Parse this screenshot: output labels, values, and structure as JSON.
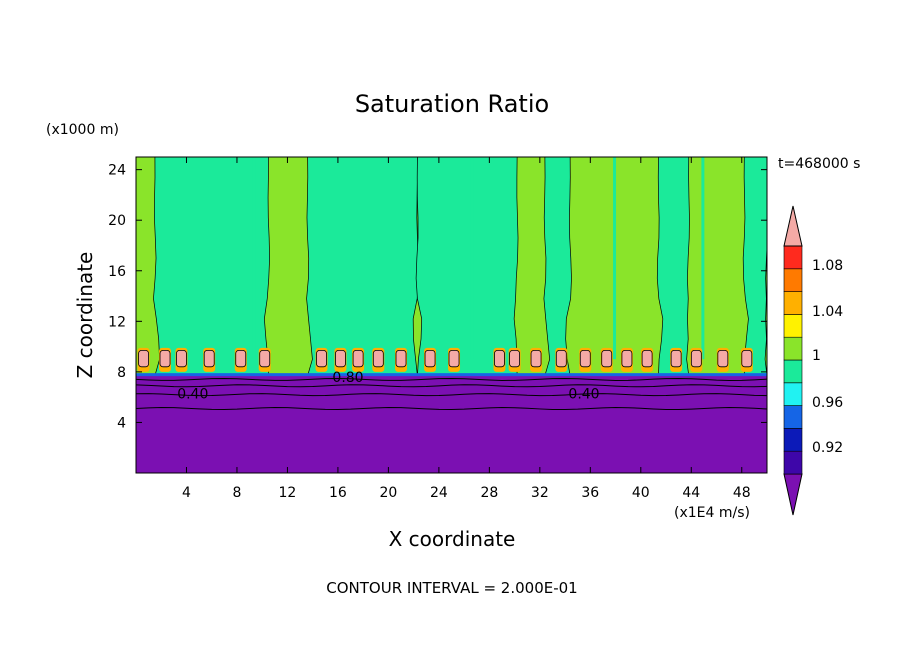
{
  "chart_data": {
    "type": "heatmap",
    "title": "Saturation Ratio",
    "xlabel": "X coordinate",
    "ylabel": "Z coordinate",
    "x_unit": "(x1E4 m/s)",
    "y_unit": "(x1000 m)",
    "time_label": "t=468000 s",
    "footer": "CONTOUR INTERVAL = 2.000E-01",
    "xlim": [
      0,
      50
    ],
    "ylim": [
      0,
      25
    ],
    "x_ticks": [
      4,
      8,
      12,
      16,
      20,
      24,
      28,
      32,
      36,
      40,
      44,
      48
    ],
    "y_ticks": [
      4,
      8,
      12,
      16,
      20,
      24
    ],
    "contour_labels": [
      {
        "text": "0.40",
        "x": 4.5,
        "y": 6.3
      },
      {
        "text": "0.40",
        "x": 35.5,
        "y": 6.3
      },
      {
        "text": "0.80",
        "x": 16.8,
        "y": 7.6
      }
    ],
    "colorbar": {
      "colors": [
        "#7b10b2",
        "#3e06a9",
        "#0c1ab8",
        "#1565e6",
        "#21f2f2",
        "#1bea9a",
        "#8ae42a",
        "#fff200",
        "#ffb000",
        "#ff7a00",
        "#ff2a1e",
        "#f4aaa6"
      ],
      "tick_labels": [
        "0.92",
        "0.96",
        "1",
        "1.04",
        "1.08"
      ]
    },
    "bumps_x": [
      0.6,
      2.3,
      3.6,
      5.8,
      8.3,
      10.2,
      14.7,
      16.2,
      17.6,
      19.2,
      21.0,
      23.3,
      25.2,
      28.8,
      30.0,
      31.7,
      33.7,
      35.6,
      37.3,
      38.9,
      40.5,
      42.8,
      44.4,
      46.5,
      48.4
    ]
  }
}
